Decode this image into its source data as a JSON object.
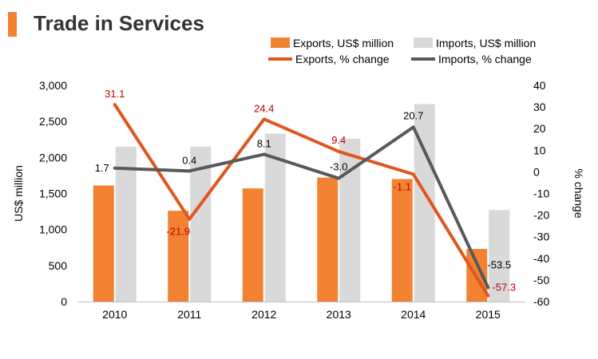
{
  "title": "Trade in Services",
  "colors": {
    "exports_bar": "#f28232",
    "imports_bar": "#d9d9d9",
    "exports_line": "#e0561f",
    "imports_line": "#595959",
    "exports_label": "#c00000",
    "imports_label": "#000000",
    "title_accent": "#f28232"
  },
  "chart_data": {
    "type": "bar",
    "categories": [
      "2010",
      "2011",
      "2012",
      "2013",
      "2014",
      "2015"
    ],
    "series": [
      {
        "name": "Exports, US$ million",
        "type": "bar",
        "axis": "left",
        "values": [
          1610,
          1260,
          1570,
          1720,
          1700,
          730
        ]
      },
      {
        "name": "Imports, US$ million",
        "type": "bar",
        "axis": "left",
        "values": [
          2150,
          2150,
          2330,
          2260,
          2740,
          1270
        ]
      },
      {
        "name": "Exports, % change",
        "type": "line",
        "axis": "right",
        "values": [
          31.1,
          -21.9,
          24.4,
          9.4,
          -1.1,
          -57.3
        ],
        "labels": [
          "31.1",
          "-21.9",
          "24.4",
          "9.4",
          "-1.1",
          "-57.3"
        ]
      },
      {
        "name": "Imports, % change",
        "type": "line",
        "axis": "right",
        "values": [
          1.7,
          0.4,
          8.1,
          -3.0,
          20.7,
          -53.5
        ],
        "labels": [
          "1.7",
          "0.4",
          "8.1",
          "-3.0",
          "20.7",
          "-53.5"
        ]
      }
    ],
    "ylabel": "US$ million",
    "ylabel_right": "% change",
    "ylim": [
      0,
      3000
    ],
    "ylim_right": [
      -60,
      40
    ],
    "yticks": [
      "0",
      "500",
      "1,000",
      "1,500",
      "2,000",
      "2,500",
      "3,000"
    ],
    "yticks_right": [
      "-60",
      "-50",
      "-40",
      "-30",
      "-20",
      "-10",
      "0",
      "10",
      "20",
      "30",
      "40"
    ],
    "grid": false,
    "legend_position": "top-right"
  }
}
